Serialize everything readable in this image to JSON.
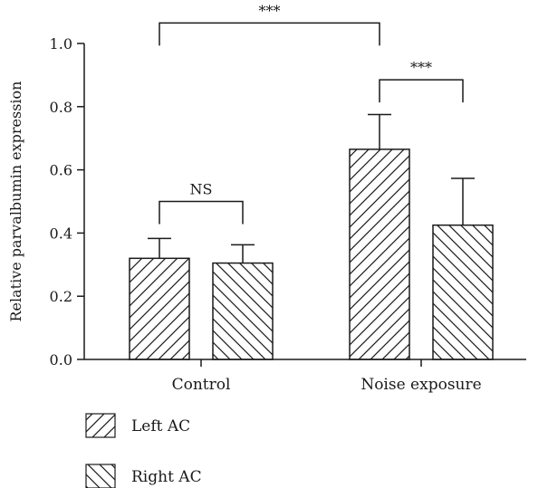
{
  "chart_data": {
    "type": "bar",
    "title": "",
    "xlabel": "",
    "ylabel": "Relative parvalbumin expression",
    "ylim": [
      0,
      1.0
    ],
    "yticks": [
      "0.0",
      "0.2",
      "0.4",
      "0.6",
      "0.8",
      "1.0"
    ],
    "grid": false,
    "legend_position": "bottom-left",
    "categories": [
      "Control",
      "Noise exposure"
    ],
    "series": [
      {
        "name": "Left AC",
        "values": [
          0.32,
          0.665
        ],
        "errors": [
          0.063,
          0.11
        ],
        "pattern": "hatch-forward"
      },
      {
        "name": "Right AC",
        "values": [
          0.305,
          0.425
        ],
        "errors": [
          0.058,
          0.148
        ],
        "pattern": "hatch-back"
      }
    ],
    "annotations": [
      {
        "label": "NS",
        "from": {
          "category": 0,
          "series": 0
        },
        "to": {
          "category": 0,
          "series": 1
        },
        "level": 0.5
      },
      {
        "label": "***",
        "from": {
          "category": 1,
          "series": 0
        },
        "to": {
          "category": 1,
          "series": 1
        },
        "level": 0.885
      },
      {
        "label": "***",
        "from": {
          "category": 0,
          "series": 0
        },
        "to": {
          "category": 1,
          "series": 0
        },
        "level": 1.065
      }
    ]
  }
}
